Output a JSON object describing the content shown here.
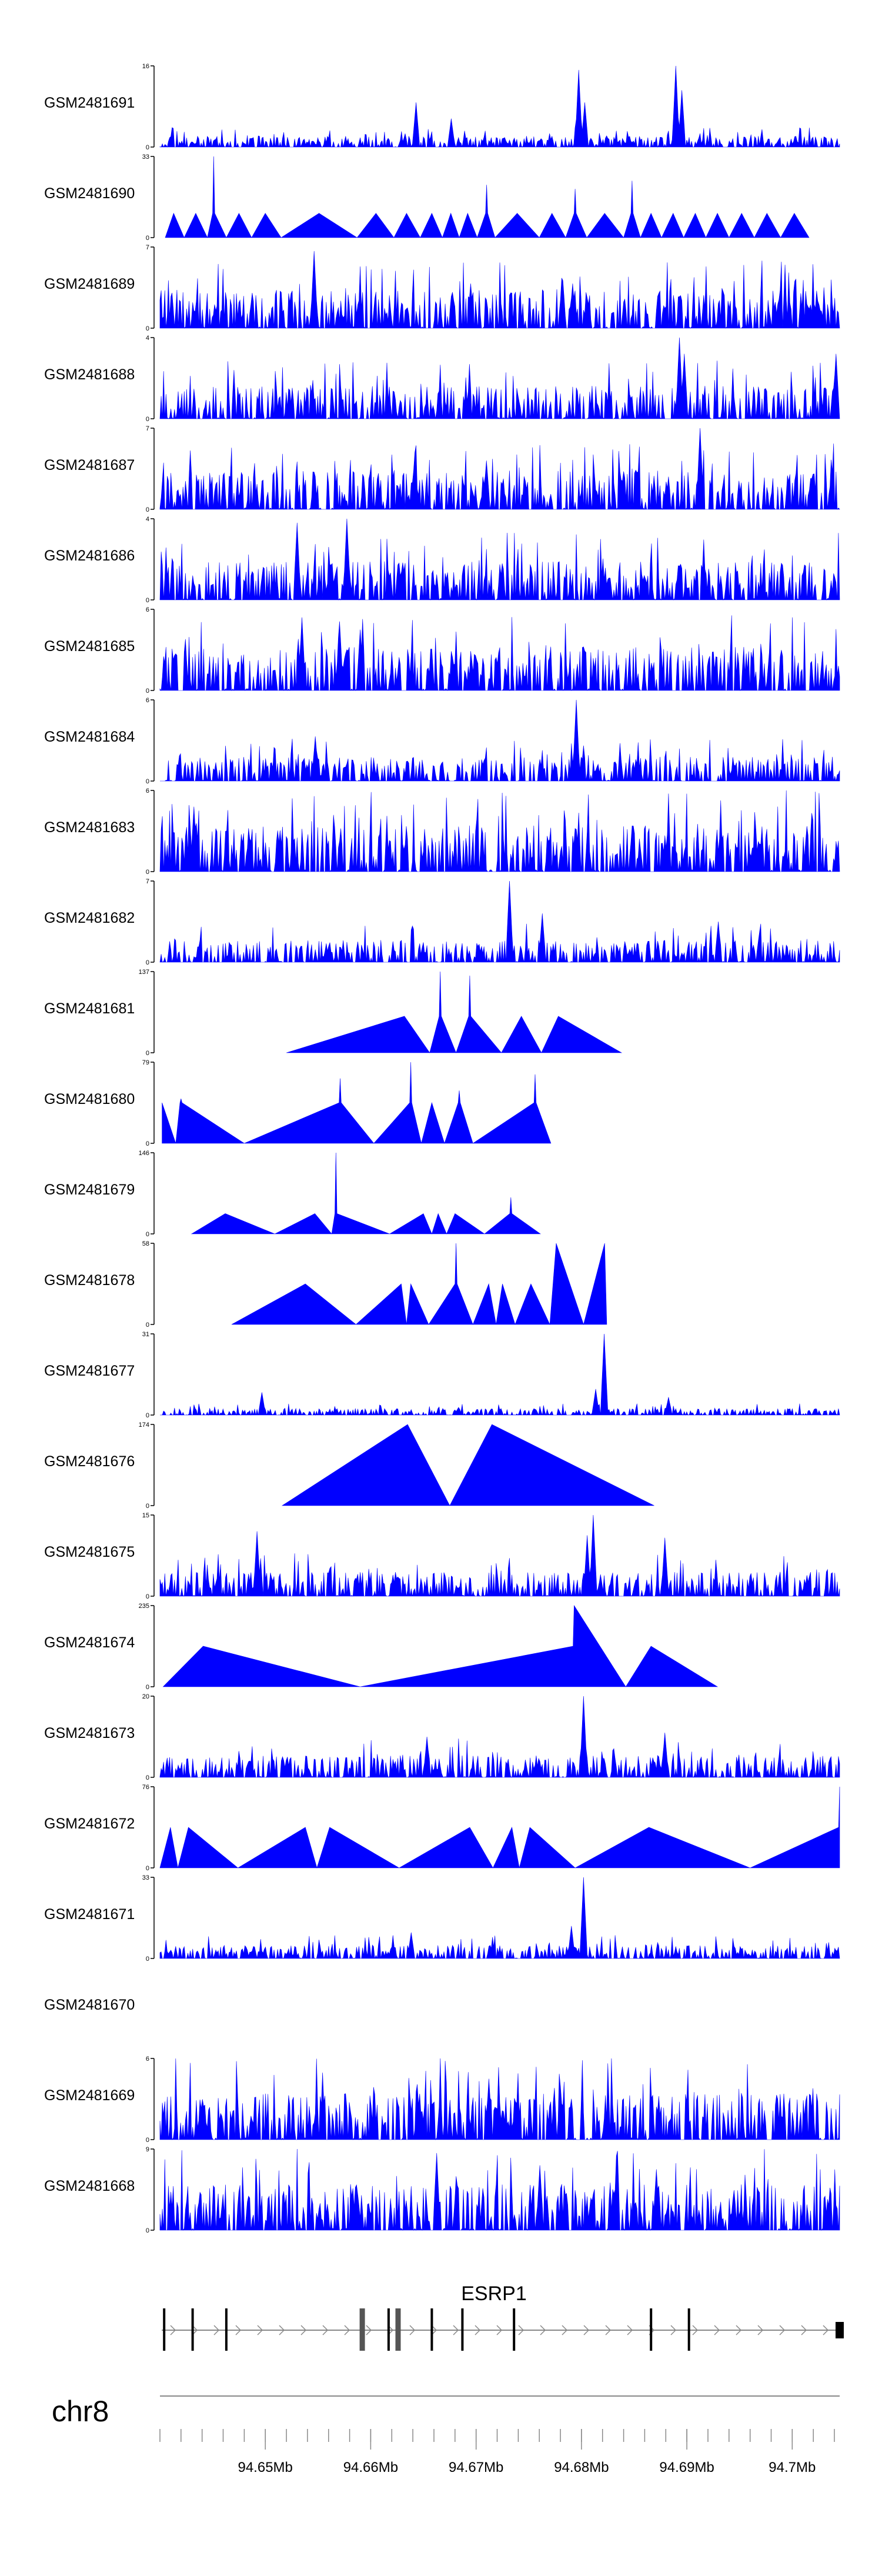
{
  "chart_data": {
    "type": "area",
    "title": "",
    "chromosome": "chr8",
    "x_unit": "Mb",
    "xlim": [
      94.64,
      94.7045
    ],
    "axis_ticks": [
      94.65,
      94.66,
      94.67,
      94.68,
      94.69,
      94.7
    ],
    "axis_tick_labels": [
      "94.65Mb",
      "94.66Mb",
      "94.67Mb",
      "94.68Mb",
      "94.69Mb",
      "94.7Mb"
    ],
    "gene": {
      "name": "ESRP1",
      "start": 94.64,
      "end": 94.7045,
      "strand": "+",
      "exons": [
        94.6404,
        94.6431,
        94.6463,
        94.6592,
        94.6617,
        94.6626,
        94.6658,
        94.6687,
        94.6736,
        94.6866,
        94.6902,
        94.7045
      ]
    },
    "tracks": [
      {
        "name": "GSM2481691",
        "ymax": 16,
        "ymax_label": "16",
        "style": "dense",
        "seed": 11,
        "base": 0.1,
        "peaks": [
          [
            94.6643,
            0.55
          ],
          [
            94.6676,
            0.35
          ],
          [
            94.6797,
            0.95
          ],
          [
            94.6803,
            0.55
          ],
          [
            94.6889,
            1.0
          ],
          [
            94.6895,
            0.7
          ]
        ]
      },
      {
        "name": "GSM2481690",
        "ymax": 33,
        "ymax_label": "33",
        "style": "sparse",
        "seed": 3,
        "ymin": 0,
        "points": [
          [
            94.6405,
            0
          ],
          [
            94.6413,
            0.3
          ],
          [
            94.6423,
            0
          ],
          [
            94.6434,
            0.3
          ],
          [
            94.6445,
            0
          ],
          [
            94.645,
            0.3
          ],
          [
            94.6451,
            1.0
          ],
          [
            94.6452,
            0.3
          ],
          [
            94.6463,
            0
          ],
          [
            94.6475,
            0.3
          ],
          [
            94.6487,
            0
          ],
          [
            94.65,
            0.3
          ],
          [
            94.6515,
            0
          ],
          [
            94.6551,
            0.3
          ],
          [
            94.6587,
            0
          ],
          [
            94.6605,
            0.3
          ],
          [
            94.6622,
            0
          ],
          [
            94.6634,
            0.3
          ],
          [
            94.6647,
            0
          ],
          [
            94.6658,
            0.3
          ],
          [
            94.6668,
            0
          ],
          [
            94.6676,
            0.3
          ],
          [
            94.6684,
            0
          ],
          [
            94.6692,
            0.3
          ],
          [
            94.6701,
            0
          ],
          [
            94.6709,
            0.3
          ],
          [
            94.671,
            0.65
          ],
          [
            94.6711,
            0.3
          ],
          [
            94.6718,
            0
          ],
          [
            94.6739,
            0.3
          ],
          [
            94.676,
            0
          ],
          [
            94.6772,
            0.3
          ],
          [
            94.6785,
            0
          ],
          [
            94.6793,
            0.3
          ],
          [
            94.6794,
            0.6
          ],
          [
            94.6795,
            0.3
          ],
          [
            94.6805,
            0
          ],
          [
            94.6822,
            0.3
          ],
          [
            94.684,
            0
          ],
          [
            94.6847,
            0.3
          ],
          [
            94.6848,
            0.7
          ],
          [
            94.6849,
            0.3
          ],
          [
            94.6856,
            0
          ],
          [
            94.6866,
            0.3
          ],
          [
            94.6876,
            0
          ],
          [
            94.6887,
            0.3
          ],
          [
            94.6897,
            0
          ],
          [
            94.6908,
            0.3
          ],
          [
            94.6918,
            0
          ],
          [
            94.6929,
            0.3
          ],
          [
            94.694,
            0
          ],
          [
            94.6952,
            0.3
          ],
          [
            94.6964,
            0
          ],
          [
            94.6976,
            0.3
          ],
          [
            94.6989,
            0
          ],
          [
            94.7002,
            0.3
          ],
          [
            94.7016,
            0
          ]
        ]
      },
      {
        "name": "GSM2481689",
        "ymax": 7,
        "ymax_label": "7",
        "style": "dense",
        "seed": 21,
        "base": 0.35,
        "peaks": [
          [
            94.6546,
            0.95
          ],
          [
            94.6695,
            0.55
          ],
          [
            94.6792,
            0.55
          ]
        ]
      },
      {
        "name": "GSM2481688",
        "ymax": 4,
        "ymax_label": "4",
        "style": "dense",
        "seed": 33,
        "base": 0.3,
        "peaks": [
          [
            94.6893,
            1.0
          ],
          [
            94.6897,
            0.8
          ],
          [
            94.7042,
            0.8
          ]
        ]
      },
      {
        "name": "GSM2481687",
        "ymax": 7,
        "ymax_label": "7",
        "style": "dense",
        "seed": 42,
        "base": 0.35,
        "peaks": [
          [
            94.6913,
            1.0
          ],
          [
            94.6642,
            0.7
          ],
          [
            94.671,
            0.6
          ]
        ]
      },
      {
        "name": "GSM2481686",
        "ymax": 4,
        "ymax_label": "4",
        "style": "dense",
        "seed": 57,
        "base": 0.35,
        "peaks": [
          [
            94.653,
            0.95
          ],
          [
            94.6577,
            1.0
          ]
        ]
      },
      {
        "name": "GSM2481685",
        "ymax": 6,
        "ymax_label": "6",
        "style": "dense",
        "seed": 64,
        "base": 0.4,
        "peaks": [
          [
            94.6535,
            0.9
          ],
          [
            94.6571,
            0.85
          ],
          [
            94.659,
            0.75
          ]
        ]
      },
      {
        "name": "GSM2481684",
        "ymax": 6,
        "ymax_label": "6",
        "style": "dense",
        "seed": 75,
        "base": 0.22,
        "peaks": [
          [
            94.6795,
            1.0
          ],
          [
            94.6548,
            0.55
          ]
        ]
      },
      {
        "name": "GSM2481683",
        "ymax": 6,
        "ymax_label": "6",
        "style": "dense",
        "seed": 88,
        "base": 0.42,
        "peaks": [
          [
            94.6432,
            0.8
          ]
        ]
      },
      {
        "name": "GSM2481682",
        "ymax": 7,
        "ymax_label": "7",
        "style": "dense",
        "seed": 99,
        "base": 0.2,
        "peaks": [
          [
            94.6732,
            1.0
          ],
          [
            94.6763,
            0.6
          ],
          [
            94.693,
            0.5
          ]
        ]
      },
      {
        "name": "GSM2481681",
        "ymax": 137,
        "ymax_label": "137",
        "style": "sparse",
        "seed": 5,
        "ymin": 0,
        "points": [
          [
            94.652,
            0
          ],
          [
            94.6632,
            0.45
          ],
          [
            94.6656,
            0
          ],
          [
            94.6665,
            0.45
          ],
          [
            94.6666,
            1.0
          ],
          [
            94.6667,
            0.45
          ],
          [
            94.6681,
            0
          ],
          [
            94.6693,
            0.45
          ],
          [
            94.6694,
            0.95
          ],
          [
            94.6695,
            0.45
          ],
          [
            94.6724,
            0
          ],
          [
            94.6743,
            0.45
          ],
          [
            94.6762,
            0
          ],
          [
            94.6778,
            0.45
          ],
          [
            94.6838,
            0
          ]
        ]
      },
      {
        "name": "GSM2481680",
        "ymax": 79,
        "ymax_label": "79",
        "style": "sparse",
        "seed": 7,
        "ymin": 0,
        "points": [
          [
            94.6402,
            0.5
          ],
          [
            94.6415,
            0
          ],
          [
            94.6419,
            0.5
          ],
          [
            94.642,
            0.55
          ],
          [
            94.6421,
            0.5
          ],
          [
            94.648,
            0
          ],
          [
            94.657,
            0.5
          ],
          [
            94.6571,
            0.8
          ],
          [
            94.6572,
            0.5
          ],
          [
            94.6603,
            0
          ],
          [
            94.6637,
            0.5
          ],
          [
            94.6638,
            1.0
          ],
          [
            94.6639,
            0.5
          ],
          [
            94.6648,
            0
          ],
          [
            94.6658,
            0.5
          ],
          [
            94.667,
            0
          ],
          [
            94.6683,
            0.5
          ],
          [
            94.6684,
            0.65
          ],
          [
            94.6685,
            0.5
          ],
          [
            94.6697,
            0
          ],
          [
            94.6755,
            0.5
          ],
          [
            94.6756,
            0.85
          ],
          [
            94.6757,
            0.5
          ],
          [
            94.6771,
            0
          ]
        ]
      },
      {
        "name": "GSM2481679",
        "ymax": 146,
        "ymax_label": "146",
        "style": "sparse",
        "seed": 9,
        "ymin": 0,
        "points": [
          [
            94.643,
            0
          ],
          [
            94.6462,
            0.25
          ],
          [
            94.6509,
            0
          ],
          [
            94.6547,
            0.25
          ],
          [
            94.6563,
            0
          ],
          [
            94.6566,
            0.25
          ],
          [
            94.6567,
            1.0
          ],
          [
            94.6568,
            0.25
          ],
          [
            94.6618,
            0
          ],
          [
            94.665,
            0.25
          ],
          [
            94.6658,
            0
          ],
          [
            94.6664,
            0.25
          ],
          [
            94.6672,
            0
          ],
          [
            94.668,
            0.25
          ],
          [
            94.6708,
            0
          ],
          [
            94.6732,
            0.25
          ],
          [
            94.6733,
            0.45
          ],
          [
            94.6734,
            0.25
          ],
          [
            94.6761,
            0
          ]
        ]
      },
      {
        "name": "GSM2481678",
        "ymax": 58,
        "ymax_label": "58",
        "style": "sparse",
        "seed": 13,
        "ymin": 0,
        "points": [
          [
            94.6468,
            0
          ],
          [
            94.6538,
            0.5
          ],
          [
            94.6586,
            0
          ],
          [
            94.6629,
            0.5
          ],
          [
            94.6634,
            0
          ],
          [
            94.6638,
            0.5
          ],
          [
            94.6655,
            0
          ],
          [
            94.668,
            0.5
          ],
          [
            94.6681,
            1.0
          ],
          [
            94.6682,
            0.5
          ],
          [
            94.6697,
            0
          ],
          [
            94.6712,
            0.5
          ],
          [
            94.6719,
            0
          ],
          [
            94.6725,
            0.5
          ],
          [
            94.6737,
            0
          ],
          [
            94.6752,
            0.5
          ],
          [
            94.677,
            0
          ],
          [
            94.6773,
            0.5
          ],
          [
            94.6776,
            1.0
          ],
          [
            94.6802,
            0
          ],
          [
            94.6822,
            1.0
          ],
          [
            94.6824,
            0
          ]
        ]
      },
      {
        "name": "GSM2481677",
        "ymax": 31,
        "ymax_label": "31",
        "style": "dense",
        "seed": 17,
        "base": 0.06,
        "peaks": [
          [
            94.6822,
            1.0
          ],
          [
            94.6814,
            0.32
          ],
          [
            94.6497,
            0.28
          ],
          [
            94.6883,
            0.22
          ]
        ]
      },
      {
        "name": "GSM2481676",
        "ymax": 174,
        "ymax_label": "174",
        "style": "sparse",
        "seed": 19,
        "ymin": 0,
        "points": [
          [
            94.6516,
            0
          ],
          [
            94.6635,
            1.0
          ],
          [
            94.6675,
            0
          ],
          [
            94.6715,
            1.0
          ],
          [
            94.6869,
            0
          ]
        ]
      },
      {
        "name": "GSM2481675",
        "ymax": 15,
        "ymax_label": "15",
        "style": "dense",
        "seed": 23,
        "base": 0.22,
        "peaks": [
          [
            94.6811,
            1.0
          ],
          [
            94.6805,
            0.75
          ],
          [
            94.6492,
            0.8
          ],
          [
            94.6879,
            0.72
          ]
        ]
      },
      {
        "name": "GSM2481674",
        "ymax": 235,
        "ymax_label": "235",
        "style": "sparse",
        "seed": 29,
        "ymin": 0,
        "points": [
          [
            94.6403,
            0
          ],
          [
            94.6441,
            0.5
          ],
          [
            94.659,
            0
          ],
          [
            94.6792,
            0.5
          ],
          [
            94.6793,
            1.0
          ],
          [
            94.6842,
            0
          ],
          [
            94.6866,
            0.5
          ],
          [
            94.6929,
            0
          ]
        ]
      },
      {
        "name": "GSM2481673",
        "ymax": 20,
        "ymax_label": "20",
        "style": "dense",
        "seed": 31,
        "base": 0.2,
        "peaks": [
          [
            94.6802,
            1.0
          ],
          [
            94.6879,
            0.55
          ],
          [
            94.6653,
            0.5
          ]
        ]
      },
      {
        "name": "GSM2481672",
        "ymax": 76,
        "ymax_label": "76",
        "style": "sparse",
        "seed": 37,
        "ymin": 0,
        "points": [
          [
            94.64,
            0
          ],
          [
            94.641,
            0.5
          ],
          [
            94.6417,
            0
          ],
          [
            94.6427,
            0.5
          ],
          [
            94.6474,
            0
          ],
          [
            94.6538,
            0.5
          ],
          [
            94.6549,
            0
          ],
          [
            94.6561,
            0.5
          ],
          [
            94.6627,
            0
          ],
          [
            94.6694,
            0.5
          ],
          [
            94.6716,
            0
          ],
          [
            94.6734,
            0.5
          ],
          [
            94.6741,
            0
          ],
          [
            94.6751,
            0.5
          ],
          [
            94.6794,
            0
          ],
          [
            94.6864,
            0.5
          ],
          [
            94.696,
            0
          ],
          [
            94.7044,
            0.5
          ],
          [
            94.7045,
            1.0
          ]
        ]
      },
      {
        "name": "GSM2481671",
        "ymax": 33,
        "ymax_label": "33",
        "style": "dense",
        "seed": 41,
        "base": 0.12,
        "peaks": [
          [
            94.6802,
            1.0
          ],
          [
            94.6791,
            0.4
          ],
          [
            94.6638,
            0.32
          ]
        ]
      },
      {
        "name": "GSM2481670",
        "empty": true
      },
      {
        "name": "GSM2481669",
        "ymax": 6,
        "ymax_label": "6",
        "style": "dense",
        "seed": 43,
        "base": 0.42,
        "peaks": [
          [
            94.6712,
            0.75
          ],
          [
            94.678,
            0.65
          ]
        ]
      },
      {
        "name": "GSM2481668",
        "ymax": 9,
        "ymax_label": "9",
        "style": "dense",
        "seed": 47,
        "base": 0.42,
        "peaks": [
          [
            94.6663,
            0.95
          ],
          [
            94.676,
            0.8
          ],
          [
            94.6871,
            0.75
          ]
        ]
      }
    ]
  },
  "colors": {
    "signal": "#0000ff",
    "axis": "#000000",
    "exon": "#000000",
    "intron": "#888888",
    "ruler": "#888888"
  }
}
